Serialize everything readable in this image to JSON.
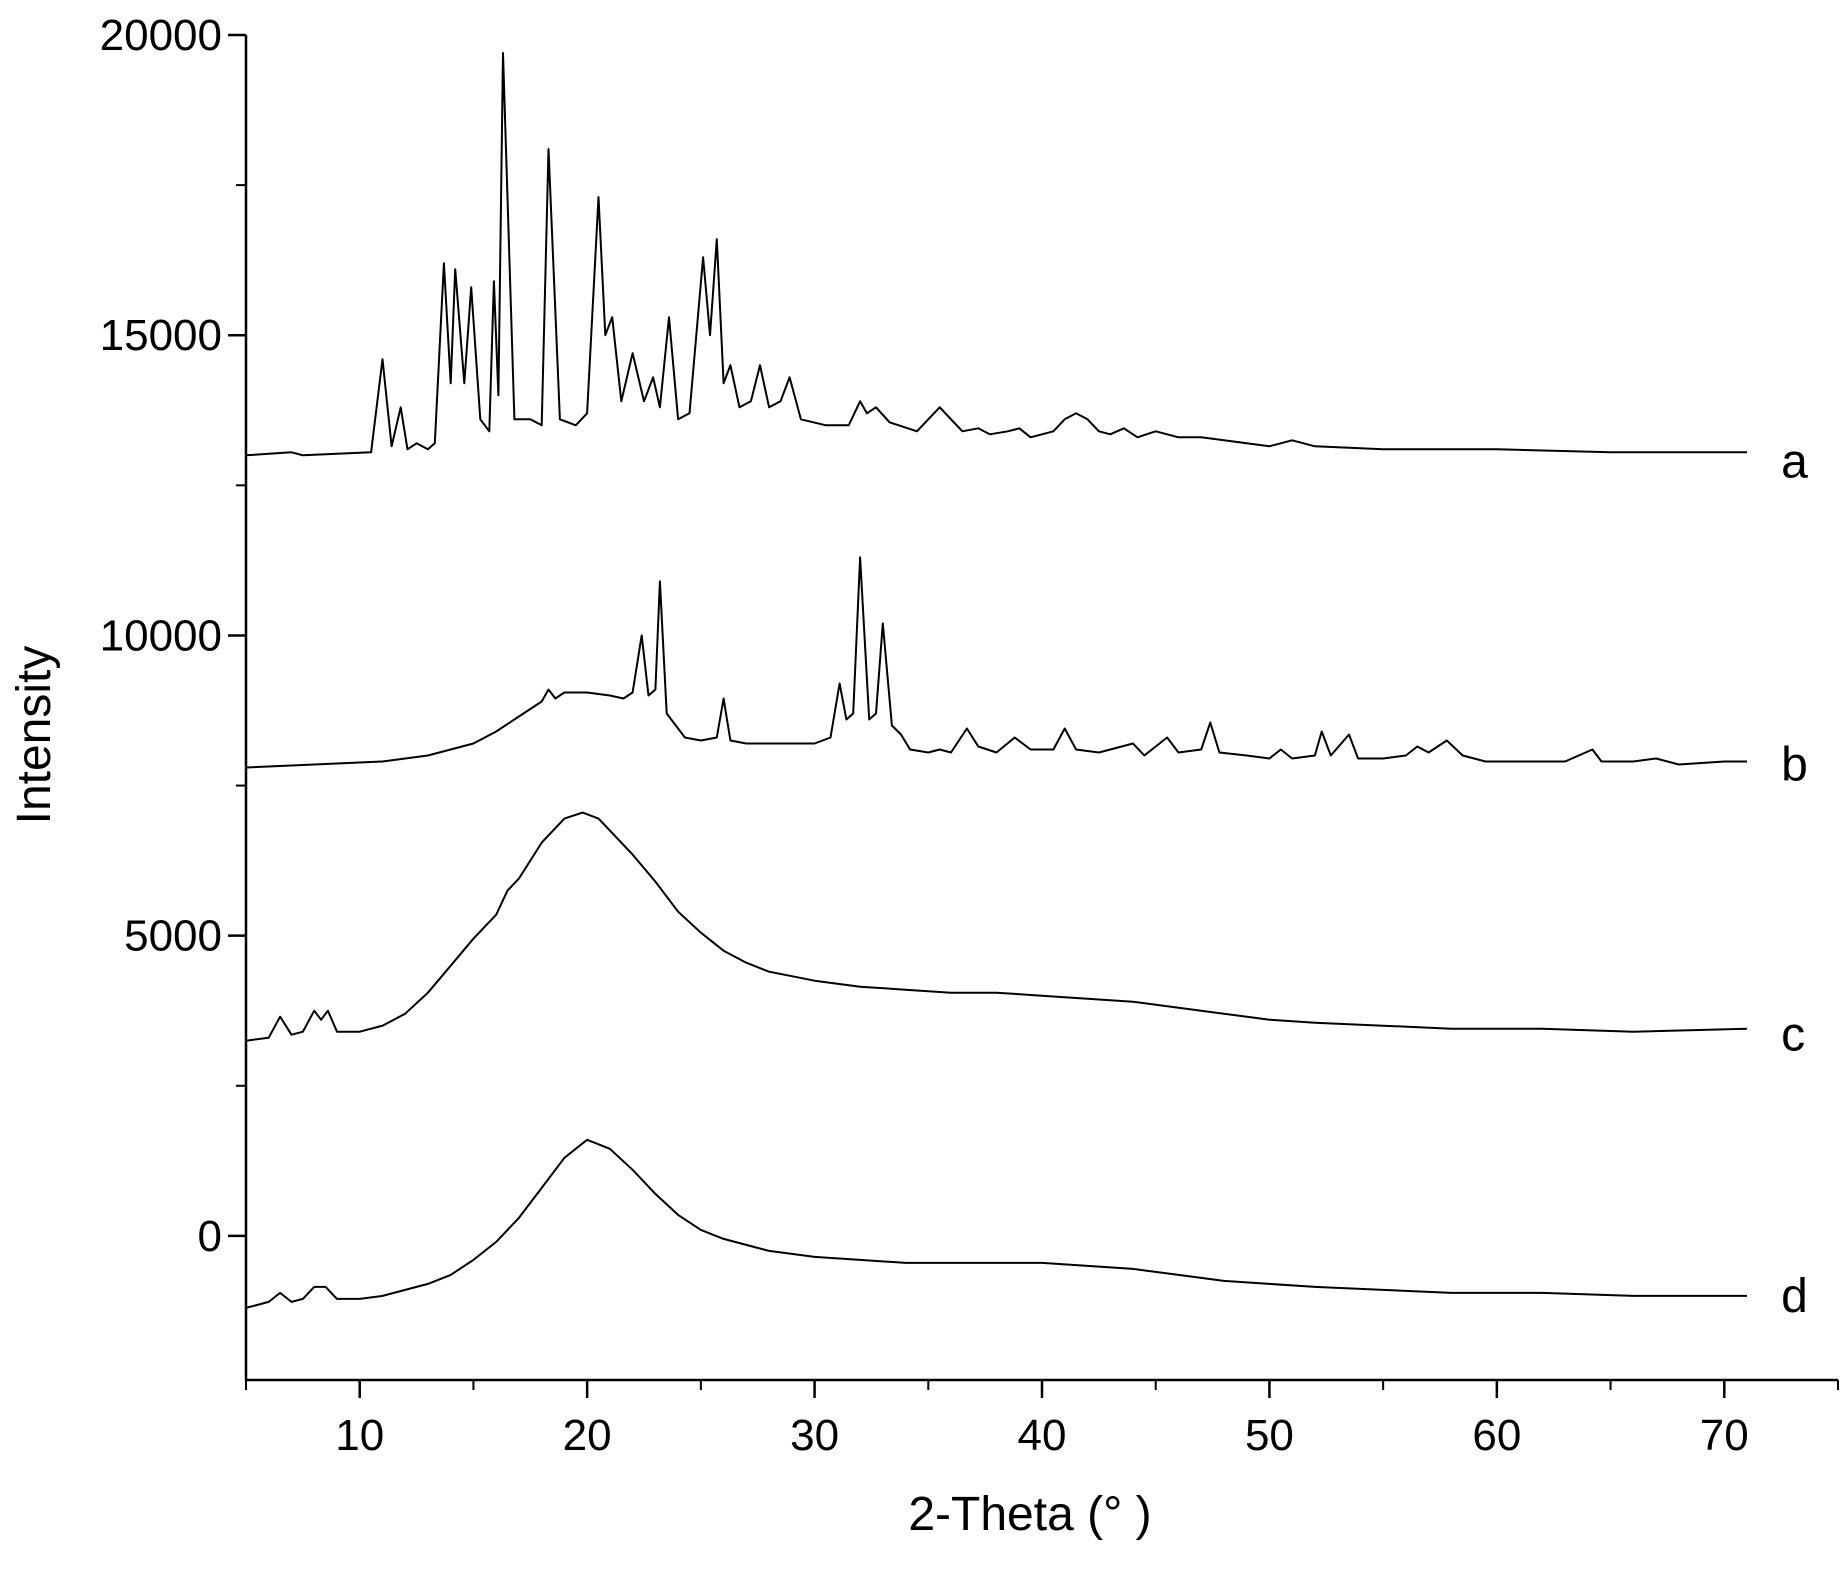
{
  "chart_data": {
    "type": "line",
    "xlabel": "2-Theta (° )",
    "ylabel": "Intensity",
    "xlim": [
      5,
      75
    ],
    "ylim": [
      -2400,
      20000
    ],
    "x_ticks": [
      10,
      20,
      30,
      40,
      50,
      60,
      70
    ],
    "y_ticks": [
      0,
      5000,
      10000,
      15000,
      20000
    ],
    "grid": false,
    "legend": "none",
    "line_color": "#000000",
    "series": [
      {
        "name": "a",
        "label_at": [
          72.5,
          12900
        ],
        "points": [
          [
            5,
            13000
          ],
          [
            7,
            13050
          ],
          [
            7.5,
            13000
          ],
          [
            10.5,
            13050
          ],
          [
            11,
            14600
          ],
          [
            11.4,
            13150
          ],
          [
            11.8,
            13800
          ],
          [
            12.1,
            13100
          ],
          [
            12.5,
            13200
          ],
          [
            13,
            13100
          ],
          [
            13.3,
            13200
          ],
          [
            13.7,
            16200
          ],
          [
            14,
            14200
          ],
          [
            14.2,
            16100
          ],
          [
            14.6,
            14200
          ],
          [
            14.9,
            15800
          ],
          [
            15.3,
            13600
          ],
          [
            15.7,
            13400
          ],
          [
            15.9,
            15900
          ],
          [
            16.1,
            14000
          ],
          [
            16.3,
            19700
          ],
          [
            16.8,
            13600
          ],
          [
            17.5,
            13600
          ],
          [
            18,
            13500
          ],
          [
            18.3,
            18100
          ],
          [
            18.8,
            13600
          ],
          [
            19.5,
            13500
          ],
          [
            20,
            13700
          ],
          [
            20.5,
            17300
          ],
          [
            20.8,
            15000
          ],
          [
            21.1,
            15300
          ],
          [
            21.5,
            13900
          ],
          [
            22,
            14700
          ],
          [
            22.5,
            13900
          ],
          [
            22.9,
            14300
          ],
          [
            23.2,
            13800
          ],
          [
            23.6,
            15300
          ],
          [
            24,
            13600
          ],
          [
            24.5,
            13700
          ],
          [
            25.1,
            16300
          ],
          [
            25.4,
            15000
          ],
          [
            25.7,
            16600
          ],
          [
            26,
            14200
          ],
          [
            26.3,
            14500
          ],
          [
            26.7,
            13800
          ],
          [
            27.2,
            13900
          ],
          [
            27.6,
            14500
          ],
          [
            28,
            13800
          ],
          [
            28.5,
            13900
          ],
          [
            28.9,
            14300
          ],
          [
            29.4,
            13600
          ],
          [
            30.5,
            13500
          ],
          [
            31.5,
            13500
          ],
          [
            32,
            13900
          ],
          [
            32.3,
            13700
          ],
          [
            32.7,
            13800
          ],
          [
            33.3,
            13550
          ],
          [
            34.5,
            13400
          ],
          [
            35.5,
            13800
          ],
          [
            36,
            13600
          ],
          [
            36.5,
            13400
          ],
          [
            37.2,
            13450
          ],
          [
            37.7,
            13350
          ],
          [
            38.5,
            13400
          ],
          [
            39,
            13450
          ],
          [
            39.5,
            13300
          ],
          [
            40.5,
            13400
          ],
          [
            41,
            13600
          ],
          [
            41.5,
            13700
          ],
          [
            42,
            13600
          ],
          [
            42.5,
            13400
          ],
          [
            43,
            13350
          ],
          [
            43.6,
            13450
          ],
          [
            44.2,
            13300
          ],
          [
            45,
            13400
          ],
          [
            46,
            13300
          ],
          [
            47,
            13300
          ],
          [
            48,
            13250
          ],
          [
            50,
            13150
          ],
          [
            51,
            13250
          ],
          [
            52,
            13150
          ],
          [
            55,
            13100
          ],
          [
            60,
            13100
          ],
          [
            65,
            13050
          ],
          [
            71,
            13050
          ]
        ]
      },
      {
        "name": "b",
        "label_at": [
          72.5,
          7850
        ],
        "points": [
          [
            5,
            7800
          ],
          [
            8,
            7850
          ],
          [
            11,
            7900
          ],
          [
            13,
            8000
          ],
          [
            15,
            8200
          ],
          [
            16,
            8400
          ],
          [
            17,
            8650
          ],
          [
            18,
            8900
          ],
          [
            18.3,
            9100
          ],
          [
            18.6,
            8950
          ],
          [
            19,
            9050
          ],
          [
            20,
            9050
          ],
          [
            21,
            9000
          ],
          [
            21.6,
            8950
          ],
          [
            22,
            9050
          ],
          [
            22.4,
            10000
          ],
          [
            22.7,
            9000
          ],
          [
            23,
            9100
          ],
          [
            23.2,
            10900
          ],
          [
            23.5,
            8700
          ],
          [
            24.3,
            8300
          ],
          [
            25,
            8250
          ],
          [
            25.7,
            8300
          ],
          [
            26,
            8950
          ],
          [
            26.3,
            8250
          ],
          [
            27,
            8200
          ],
          [
            28,
            8200
          ],
          [
            29,
            8200
          ],
          [
            30,
            8200
          ],
          [
            30.7,
            8300
          ],
          [
            31.1,
            9200
          ],
          [
            31.4,
            8600
          ],
          [
            31.7,
            8700
          ],
          [
            32,
            11300
          ],
          [
            32.4,
            8600
          ],
          [
            32.7,
            8700
          ],
          [
            33,
            10200
          ],
          [
            33.4,
            8500
          ],
          [
            33.8,
            8350
          ],
          [
            34.2,
            8100
          ],
          [
            35,
            8050
          ],
          [
            35.5,
            8100
          ],
          [
            36,
            8050
          ],
          [
            36.7,
            8450
          ],
          [
            37.2,
            8150
          ],
          [
            38,
            8050
          ],
          [
            38.8,
            8300
          ],
          [
            39.5,
            8100
          ],
          [
            40.5,
            8100
          ],
          [
            41,
            8450
          ],
          [
            41.5,
            8100
          ],
          [
            42.5,
            8050
          ],
          [
            44,
            8200
          ],
          [
            44.5,
            8000
          ],
          [
            45.5,
            8300
          ],
          [
            46,
            8050
          ],
          [
            47,
            8100
          ],
          [
            47.4,
            8550
          ],
          [
            47.8,
            8050
          ],
          [
            49,
            8000
          ],
          [
            50,
            7950
          ],
          [
            50.5,
            8100
          ],
          [
            51,
            7950
          ],
          [
            52,
            8000
          ],
          [
            52.3,
            8400
          ],
          [
            52.7,
            8000
          ],
          [
            53.5,
            8350
          ],
          [
            53.9,
            7950
          ],
          [
            55,
            7950
          ],
          [
            56,
            8000
          ],
          [
            56.5,
            8150
          ],
          [
            57,
            8050
          ],
          [
            57.8,
            8250
          ],
          [
            58.5,
            8000
          ],
          [
            59.5,
            7900
          ],
          [
            61,
            7900
          ],
          [
            63,
            7900
          ],
          [
            64.2,
            8100
          ],
          [
            64.6,
            7900
          ],
          [
            66,
            7900
          ],
          [
            67,
            7950
          ],
          [
            68,
            7850
          ],
          [
            70,
            7900
          ],
          [
            71,
            7900
          ]
        ]
      },
      {
        "name": "c",
        "label_at": [
          72.5,
          3350
        ],
        "points": [
          [
            5,
            3250
          ],
          [
            6,
            3300
          ],
          [
            6.5,
            3650
          ],
          [
            7,
            3350
          ],
          [
            7.5,
            3400
          ],
          [
            8,
            3750
          ],
          [
            8.3,
            3600
          ],
          [
            8.6,
            3750
          ],
          [
            9,
            3400
          ],
          [
            10,
            3400
          ],
          [
            11,
            3500
          ],
          [
            12,
            3700
          ],
          [
            13,
            4050
          ],
          [
            14,
            4500
          ],
          [
            15,
            4950
          ],
          [
            16,
            5350
          ],
          [
            16.5,
            5750
          ],
          [
            17,
            5950
          ],
          [
            18,
            6550
          ],
          [
            19,
            6950
          ],
          [
            19.8,
            7050
          ],
          [
            20.5,
            6950
          ],
          [
            21,
            6750
          ],
          [
            22,
            6350
          ],
          [
            23,
            5900
          ],
          [
            24,
            5400
          ],
          [
            25,
            5050
          ],
          [
            26,
            4750
          ],
          [
            27,
            4550
          ],
          [
            28,
            4400
          ],
          [
            30,
            4250
          ],
          [
            32,
            4150
          ],
          [
            34,
            4100
          ],
          [
            36,
            4050
          ],
          [
            38,
            4050
          ],
          [
            40,
            4000
          ],
          [
            42,
            3950
          ],
          [
            44,
            3900
          ],
          [
            46,
            3800
          ],
          [
            48,
            3700
          ],
          [
            50,
            3600
          ],
          [
            52,
            3550
          ],
          [
            55,
            3500
          ],
          [
            58,
            3450
          ],
          [
            62,
            3450
          ],
          [
            66,
            3400
          ],
          [
            71,
            3450
          ]
        ]
      },
      {
        "name": "d",
        "label_at": [
          72.5,
          -1000
        ],
        "points": [
          [
            5,
            -1200
          ],
          [
            6,
            -1100
          ],
          [
            6.5,
            -950
          ],
          [
            7,
            -1100
          ],
          [
            7.5,
            -1050
          ],
          [
            8,
            -850
          ],
          [
            8.5,
            -850
          ],
          [
            9,
            -1050
          ],
          [
            10,
            -1050
          ],
          [
            11,
            -1000
          ],
          [
            12,
            -900
          ],
          [
            13,
            -800
          ],
          [
            14,
            -650
          ],
          [
            15,
            -400
          ],
          [
            16,
            -100
          ],
          [
            17,
            300
          ],
          [
            18,
            800
          ],
          [
            19,
            1300
          ],
          [
            20,
            1600
          ],
          [
            21,
            1450
          ],
          [
            22,
            1100
          ],
          [
            23,
            700
          ],
          [
            24,
            350
          ],
          [
            25,
            100
          ],
          [
            26,
            -50
          ],
          [
            27,
            -150
          ],
          [
            28,
            -250
          ],
          [
            30,
            -350
          ],
          [
            32,
            -400
          ],
          [
            34,
            -450
          ],
          [
            36,
            -450
          ],
          [
            38,
            -450
          ],
          [
            40,
            -450
          ],
          [
            42,
            -500
          ],
          [
            44,
            -550
          ],
          [
            46,
            -650
          ],
          [
            48,
            -750
          ],
          [
            50,
            -800
          ],
          [
            52,
            -850
          ],
          [
            55,
            -900
          ],
          [
            58,
            -950
          ],
          [
            62,
            -950
          ],
          [
            66,
            -1000
          ],
          [
            71,
            -1000
          ]
        ]
      }
    ]
  }
}
